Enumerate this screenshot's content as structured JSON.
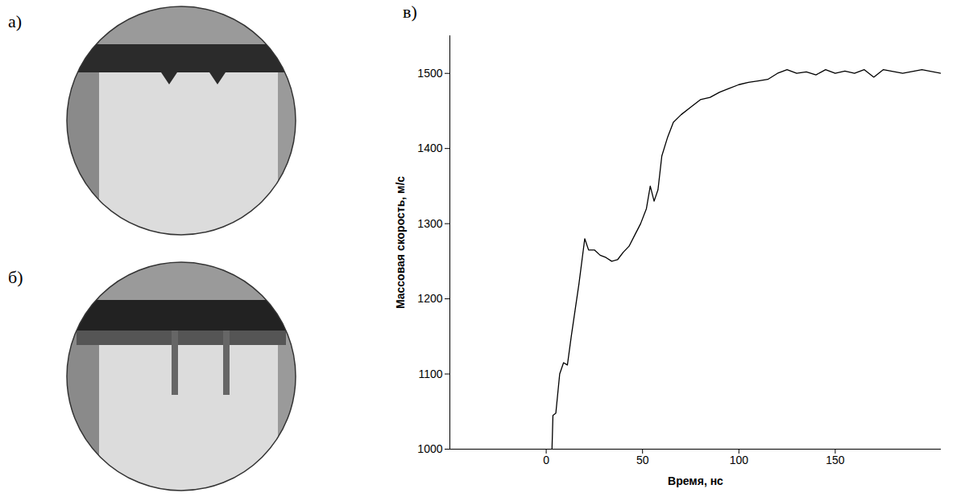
{
  "photos": [
    {
      "label": "а)"
    },
    {
      "label": "б)"
    }
  ],
  "chart_data": {
    "type": "line",
    "label": "в)",
    "x_label": "Время, нс",
    "y_label": "Массовая скорость, м/с",
    "color": "#000000",
    "xlim": [
      -50,
      205
    ],
    "xticks": [
      0,
      50,
      100,
      150
    ],
    "ylim": [
      1000,
      1550
    ],
    "yticks": [
      1000,
      1100,
      1200,
      1300,
      1400,
      1500
    ],
    "grid": false,
    "x": [
      3,
      3.5,
      5,
      7,
      9,
      11,
      13,
      15,
      17,
      19,
      20,
      22,
      25,
      28,
      31,
      34,
      37,
      40,
      43,
      46,
      49,
      52,
      54,
      56,
      58,
      60,
      63,
      66,
      70,
      75,
      80,
      85,
      90,
      95,
      100,
      105,
      110,
      115,
      120,
      125,
      130,
      135,
      140,
      145,
      150,
      155,
      160,
      165,
      170,
      175,
      185,
      195,
      205
    ],
    "values": [
      1000,
      1045,
      1048,
      1100,
      1115,
      1112,
      1150,
      1185,
      1220,
      1260,
      1280,
      1265,
      1265,
      1258,
      1255,
      1250,
      1252,
      1262,
      1270,
      1285,
      1300,
      1320,
      1350,
      1330,
      1345,
      1390,
      1415,
      1435,
      1445,
      1455,
      1465,
      1468,
      1475,
      1480,
      1485,
      1488,
      1490,
      1492,
      1500,
      1505,
      1500,
      1502,
      1498,
      1505,
      1500,
      1503,
      1500,
      1505,
      1495,
      1505,
      1500,
      1505,
      1500
    ]
  }
}
